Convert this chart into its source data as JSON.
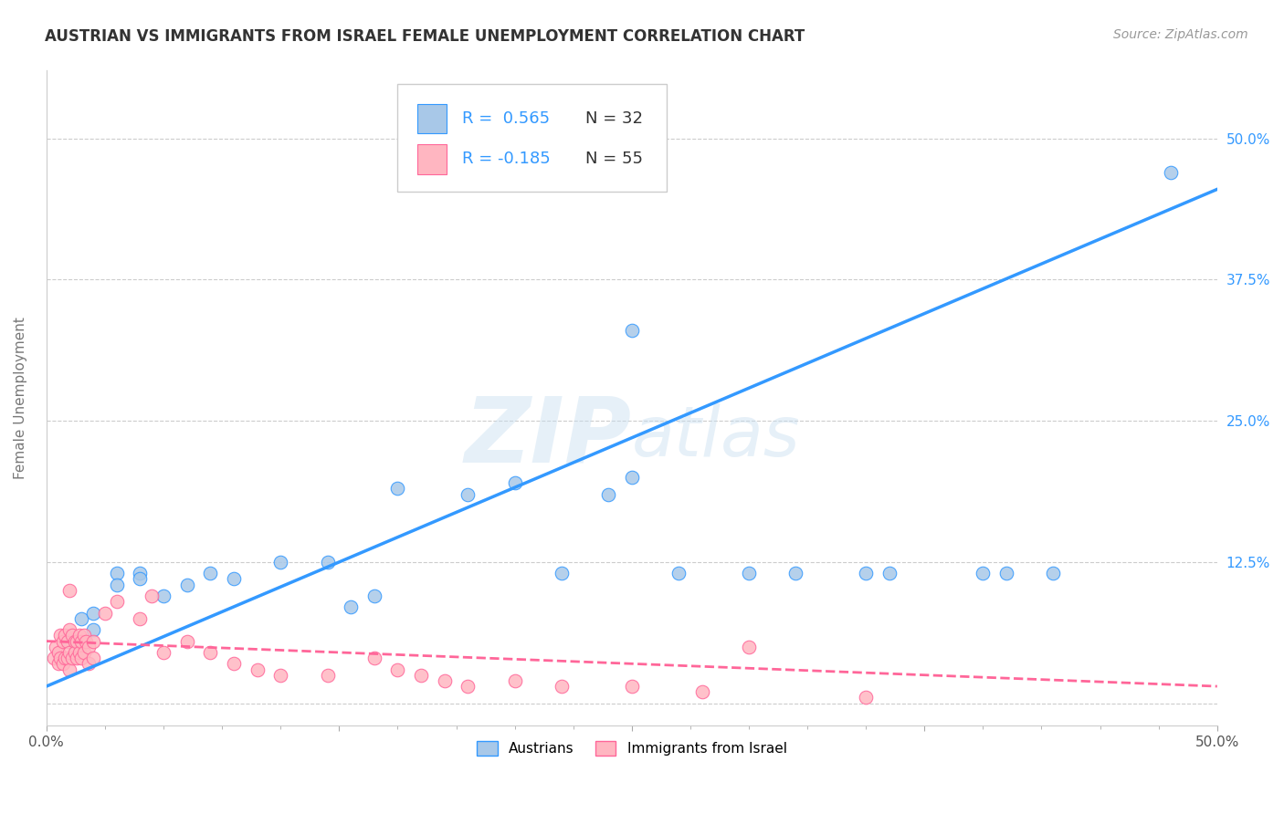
{
  "title": "AUSTRIAN VS IMMIGRANTS FROM ISRAEL FEMALE UNEMPLOYMENT CORRELATION CHART",
  "source": "Source: ZipAtlas.com",
  "ylabel": "Female Unemployment",
  "xlim": [
    0.0,
    0.5
  ],
  "ylim": [
    -0.02,
    0.56
  ],
  "xticks": [
    0.0,
    0.125,
    0.25,
    0.375,
    0.5
  ],
  "xticklabels": [
    "0.0%",
    "",
    "",
    "",
    "50.0%"
  ],
  "yticks": [
    0.0,
    0.125,
    0.25,
    0.375,
    0.5
  ],
  "yticklabels": [
    "",
    "12.5%",
    "25.0%",
    "37.5%",
    "50.0%"
  ],
  "grid_color": "#cccccc",
  "background_color": "#ffffff",
  "watermark_zip": "ZIP",
  "watermark_atlas": "atlas",
  "blue_color": "#a8c8e8",
  "pink_color": "#ffb6c1",
  "blue_line_color": "#3399ff",
  "pink_line_color": "#ff6699",
  "blue_scatter": [
    [
      0.01,
      0.055
    ],
    [
      0.015,
      0.075
    ],
    [
      0.02,
      0.08
    ],
    [
      0.02,
      0.065
    ],
    [
      0.03,
      0.115
    ],
    [
      0.03,
      0.105
    ],
    [
      0.04,
      0.115
    ],
    [
      0.04,
      0.11
    ],
    [
      0.05,
      0.095
    ],
    [
      0.06,
      0.105
    ],
    [
      0.07,
      0.115
    ],
    [
      0.08,
      0.11
    ],
    [
      0.1,
      0.125
    ],
    [
      0.12,
      0.125
    ],
    [
      0.13,
      0.085
    ],
    [
      0.14,
      0.095
    ],
    [
      0.15,
      0.19
    ],
    [
      0.18,
      0.185
    ],
    [
      0.2,
      0.195
    ],
    [
      0.22,
      0.115
    ],
    [
      0.24,
      0.185
    ],
    [
      0.25,
      0.2
    ],
    [
      0.27,
      0.115
    ],
    [
      0.3,
      0.115
    ],
    [
      0.32,
      0.115
    ],
    [
      0.35,
      0.115
    ],
    [
      0.36,
      0.115
    ],
    [
      0.4,
      0.115
    ],
    [
      0.41,
      0.115
    ],
    [
      0.43,
      0.115
    ],
    [
      0.48,
      0.47
    ],
    [
      0.25,
      0.33
    ]
  ],
  "pink_scatter": [
    [
      0.003,
      0.04
    ],
    [
      0.004,
      0.05
    ],
    [
      0.005,
      0.045
    ],
    [
      0.005,
      0.035
    ],
    [
      0.006,
      0.06
    ],
    [
      0.006,
      0.04
    ],
    [
      0.007,
      0.055
    ],
    [
      0.007,
      0.035
    ],
    [
      0.008,
      0.06
    ],
    [
      0.008,
      0.04
    ],
    [
      0.009,
      0.055
    ],
    [
      0.009,
      0.04
    ],
    [
      0.01,
      0.065
    ],
    [
      0.01,
      0.045
    ],
    [
      0.01,
      0.03
    ],
    [
      0.011,
      0.06
    ],
    [
      0.011,
      0.04
    ],
    [
      0.012,
      0.055
    ],
    [
      0.012,
      0.045
    ],
    [
      0.013,
      0.055
    ],
    [
      0.013,
      0.04
    ],
    [
      0.014,
      0.06
    ],
    [
      0.014,
      0.045
    ],
    [
      0.015,
      0.055
    ],
    [
      0.015,
      0.04
    ],
    [
      0.016,
      0.06
    ],
    [
      0.016,
      0.045
    ],
    [
      0.017,
      0.055
    ],
    [
      0.018,
      0.05
    ],
    [
      0.018,
      0.035
    ],
    [
      0.02,
      0.055
    ],
    [
      0.02,
      0.04
    ],
    [
      0.025,
      0.08
    ],
    [
      0.03,
      0.09
    ],
    [
      0.04,
      0.075
    ],
    [
      0.045,
      0.095
    ],
    [
      0.05,
      0.045
    ],
    [
      0.06,
      0.055
    ],
    [
      0.07,
      0.045
    ],
    [
      0.08,
      0.035
    ],
    [
      0.09,
      0.03
    ],
    [
      0.1,
      0.025
    ],
    [
      0.12,
      0.025
    ],
    [
      0.14,
      0.04
    ],
    [
      0.15,
      0.03
    ],
    [
      0.16,
      0.025
    ],
    [
      0.17,
      0.02
    ],
    [
      0.18,
      0.015
    ],
    [
      0.2,
      0.02
    ],
    [
      0.22,
      0.015
    ],
    [
      0.25,
      0.015
    ],
    [
      0.28,
      0.01
    ],
    [
      0.3,
      0.05
    ],
    [
      0.35,
      0.005
    ],
    [
      0.01,
      0.1
    ]
  ],
  "blue_line": [
    [
      0.0,
      0.015
    ],
    [
      0.5,
      0.455
    ]
  ],
  "pink_line": [
    [
      0.0,
      0.055
    ],
    [
      0.5,
      0.015
    ]
  ],
  "title_fontsize": 12,
  "axis_label_fontsize": 11,
  "tick_fontsize": 11,
  "source_fontsize": 10,
  "legend_R_blue": "R =  0.565",
  "legend_N_blue": "N = 32",
  "legend_R_pink": "R = -0.185",
  "legend_N_pink": "N = 55",
  "legend_labels": [
    "Austrians",
    "Immigrants from Israel"
  ]
}
